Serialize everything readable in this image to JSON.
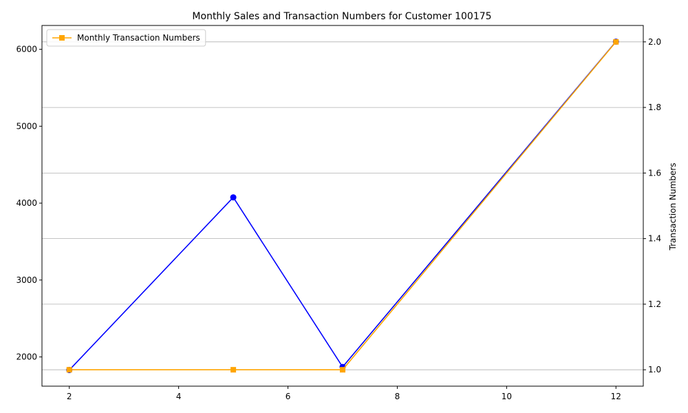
{
  "chart_data": {
    "type": "line",
    "title": "Monthly Sales and Transaction Numbers for Customer 100175",
    "xlabel": "",
    "ylabel_left": "",
    "ylabel_right": "Transaction Numbers",
    "xlim": [
      1.5,
      12.5
    ],
    "ylim_left": [
      1620,
      6310
    ],
    "ylim_right": [
      0.95,
      2.05
    ],
    "x_ticks": [
      2,
      4,
      6,
      8,
      10,
      12
    ],
    "y_left_ticks": [
      2000,
      3000,
      4000,
      5000,
      6000
    ],
    "y_right_ticks": [
      1.0,
      1.2,
      1.4,
      1.6,
      1.8,
      2.0
    ],
    "y_right_tick_labels": [
      "1.0",
      "1.2",
      "1.4",
      "1.6",
      "1.8",
      "2.0"
    ],
    "grid": "horizontal lines at right-axis ticks",
    "legend": "top-left",
    "series": [
      {
        "axis": "left",
        "color": "#0000ff",
        "marker": "circle",
        "x": [
          2,
          5,
          7,
          12
        ],
        "values": [
          1830,
          4075,
          1870,
          6100
        ]
      },
      {
        "name": "Monthly Transaction Numbers",
        "axis": "right",
        "color": "#ffa500",
        "marker": "square",
        "x": [
          2,
          5,
          7,
          12
        ],
        "values": [
          1,
          1,
          1,
          2
        ]
      }
    ]
  }
}
